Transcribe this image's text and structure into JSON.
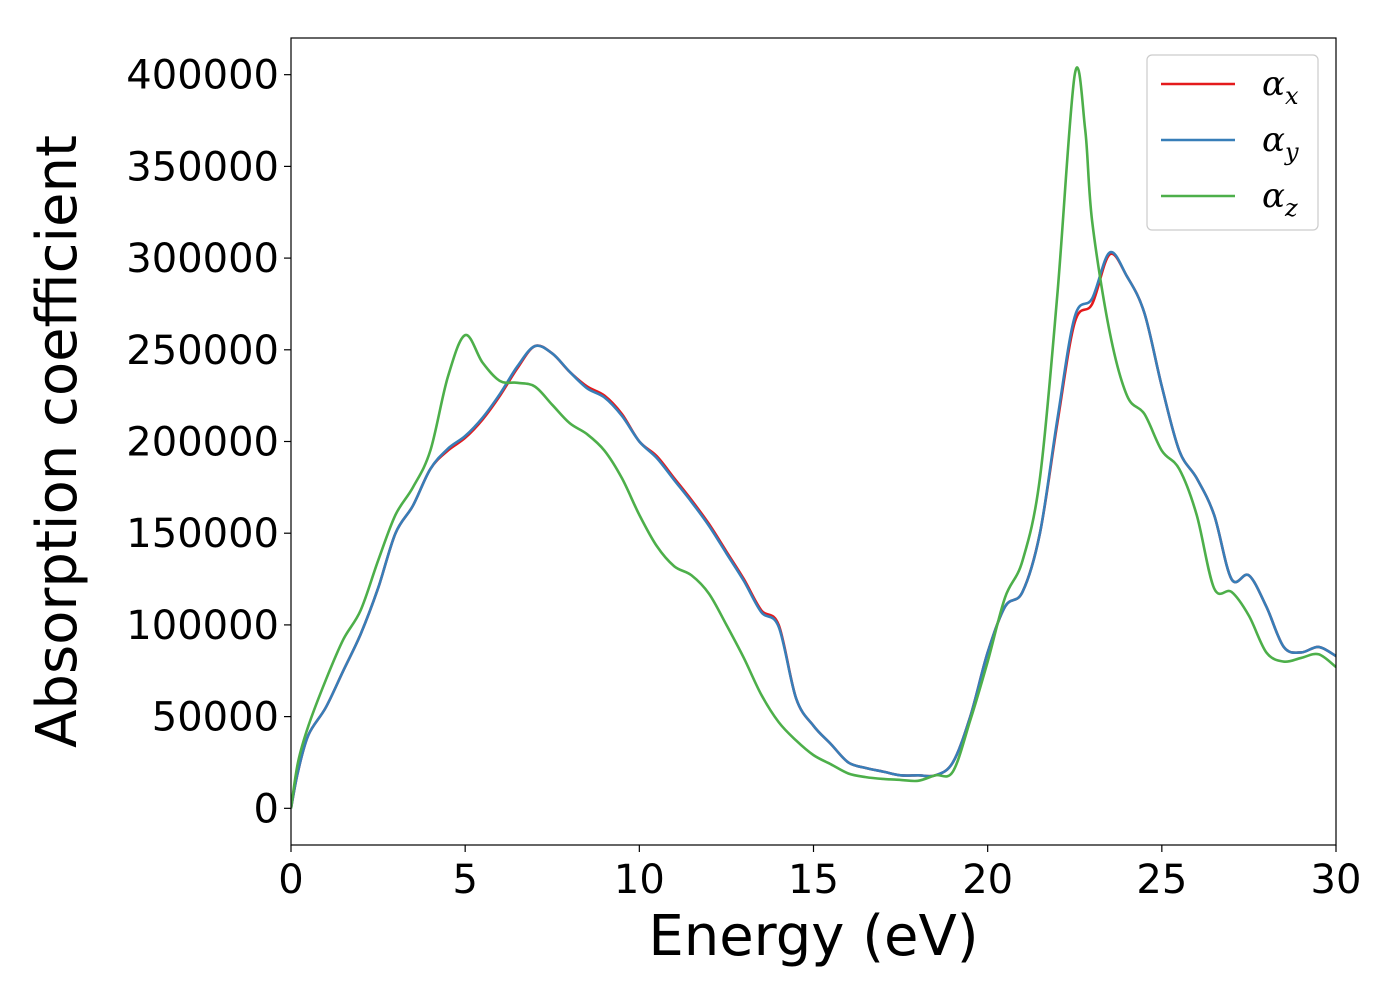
{
  "chart_data": {
    "type": "line",
    "title": "",
    "xlabel": "Energy (eV)",
    "ylabel": "Absorption coefficient",
    "xlim": [
      0,
      30
    ],
    "ylim": [
      -20000,
      420000
    ],
    "xticks": [
      0,
      5,
      10,
      15,
      20,
      25,
      30
    ],
    "yticks": [
      0,
      50000,
      100000,
      150000,
      200000,
      250000,
      300000,
      350000,
      400000
    ],
    "grid": false,
    "legend_position": "top-right",
    "series": [
      {
        "name": "α",
        "subscript": "x",
        "color": "#e41a1c",
        "x": [
          0,
          0.2,
          0.5,
          1,
          1.5,
          2,
          2.5,
          3,
          3.5,
          4,
          4.5,
          5,
          5.5,
          6,
          6.5,
          7,
          7.5,
          8,
          8.5,
          9,
          9.5,
          10,
          10.5,
          11,
          11.5,
          12,
          12.5,
          13,
          13.5,
          14,
          14.5,
          15,
          15.5,
          16,
          16.5,
          17,
          17.5,
          18,
          18.5,
          19,
          19.5,
          20,
          20.5,
          21,
          21.5,
          22,
          22.5,
          23,
          23.5,
          24,
          24.5,
          25,
          25.5,
          26,
          26.5,
          27,
          27.5,
          28,
          28.5,
          29,
          29.5,
          30
        ],
        "values": [
          0,
          20000,
          40000,
          55000,
          75000,
          95000,
          120000,
          150000,
          165000,
          185000,
          195000,
          202000,
          212000,
          225000,
          240000,
          252000,
          248000,
          238000,
          230000,
          225000,
          215000,
          200000,
          192000,
          180000,
          168000,
          155000,
          140000,
          125000,
          108000,
          100000,
          60000,
          45000,
          35000,
          25000,
          22000,
          20000,
          18000,
          18000,
          18000,
          25000,
          50000,
          85000,
          110000,
          118000,
          150000,
          210000,
          265000,
          275000,
          302000,
          290000,
          270000,
          230000,
          195000,
          180000,
          160000,
          125000,
          127000,
          110000,
          88000,
          85000,
          88000,
          83000
        ]
      },
      {
        "name": "α",
        "subscript": "y",
        "color": "#377eb8",
        "x": [
          0,
          0.2,
          0.5,
          1,
          1.5,
          2,
          2.5,
          3,
          3.5,
          4,
          4.5,
          5,
          5.5,
          6,
          6.5,
          7,
          7.5,
          8,
          8.5,
          9,
          9.5,
          10,
          10.5,
          11,
          11.5,
          12,
          12.5,
          13,
          13.5,
          14,
          14.5,
          15,
          15.5,
          16,
          16.5,
          17,
          17.5,
          18,
          18.5,
          19,
          19.5,
          20,
          20.5,
          21,
          21.5,
          22,
          22.5,
          23,
          23.5,
          24,
          24.5,
          25,
          25.5,
          26,
          26.5,
          27,
          27.5,
          28,
          28.5,
          29,
          29.5,
          30
        ],
        "values": [
          0,
          20000,
          40000,
          55000,
          75000,
          95000,
          120000,
          150000,
          165000,
          185000,
          196000,
          203000,
          213000,
          226000,
          241000,
          252000,
          248000,
          238000,
          229000,
          224000,
          214000,
          200000,
          191000,
          179000,
          167000,
          154000,
          139000,
          124000,
          107000,
          99000,
          60000,
          45000,
          35000,
          25000,
          22000,
          20000,
          18000,
          18000,
          18000,
          25000,
          50000,
          85000,
          110000,
          118000,
          150000,
          212000,
          268000,
          278000,
          303000,
          290000,
          270000,
          230000,
          195000,
          180000,
          160000,
          125000,
          127000,
          110000,
          88000,
          85000,
          88000,
          83000
        ]
      },
      {
        "name": "α",
        "subscript": "z",
        "color": "#4daf4a",
        "x": [
          0,
          0.2,
          0.5,
          1,
          1.5,
          2,
          2.5,
          3,
          3.5,
          4,
          4.5,
          5,
          5.5,
          6,
          6.5,
          7,
          7.5,
          8,
          8.5,
          9,
          9.5,
          10,
          10.5,
          11,
          11.5,
          12,
          12.5,
          13,
          13.5,
          14,
          14.5,
          15,
          15.5,
          16,
          16.5,
          17,
          17.5,
          18,
          18.5,
          19,
          19.5,
          20,
          20.5,
          21,
          21.5,
          22,
          22.5,
          22.8,
          23,
          23.5,
          24,
          24.5,
          25,
          25.5,
          26,
          26.5,
          27,
          27.5,
          28,
          28.5,
          29,
          29.5,
          30
        ],
        "values": [
          0,
          25000,
          45000,
          70000,
          92000,
          108000,
          135000,
          160000,
          175000,
          195000,
          235000,
          258000,
          243000,
          233000,
          232000,
          230000,
          220000,
          210000,
          204000,
          195000,
          180000,
          160000,
          143000,
          132000,
          127000,
          117000,
          100000,
          82000,
          62000,
          47000,
          37000,
          29000,
          24000,
          19000,
          17000,
          16000,
          15500,
          15000,
          18000,
          20000,
          48000,
          80000,
          115000,
          135000,
          180000,
          280000,
          400000,
          370000,
          320000,
          260000,
          225000,
          215000,
          195000,
          185000,
          160000,
          120000,
          118000,
          105000,
          85000,
          80000,
          82000,
          84000,
          77000
        ]
      }
    ]
  }
}
